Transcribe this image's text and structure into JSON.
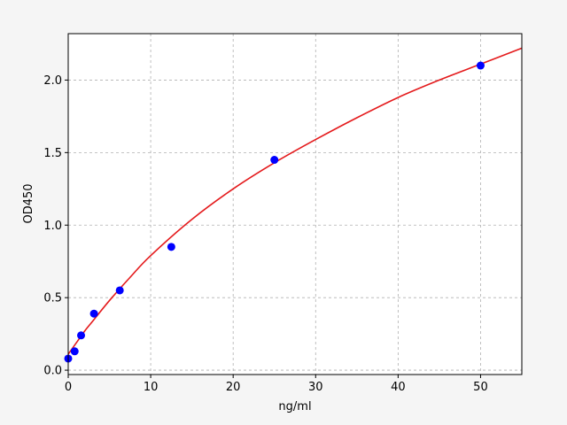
{
  "chart_data": {
    "type": "scatter",
    "title": "",
    "xlabel": "ng/ml",
    "ylabel": "OD450",
    "xlim": [
      0,
      55
    ],
    "ylim": [
      -0.03,
      2.32
    ],
    "xticks": [
      0,
      10,
      20,
      30,
      40,
      50
    ],
    "yticks": [
      0.0,
      0.5,
      1.0,
      1.5,
      2.0
    ],
    "xtick_labels": [
      "0",
      "10",
      "20",
      "30",
      "40",
      "50"
    ],
    "ytick_labels": [
      "0.0",
      "0.5",
      "1.0",
      "1.5",
      "2.0"
    ],
    "grid": true,
    "points": {
      "color": "#0000ff",
      "x": [
        0,
        0.78,
        1.56,
        3.125,
        6.25,
        12.5,
        25,
        50
      ],
      "y": [
        0.08,
        0.13,
        0.24,
        0.39,
        0.55,
        0.85,
        1.45,
        2.1
      ]
    },
    "fit_curve": {
      "color": "#e41a1c",
      "x": [
        0,
        1,
        2,
        3,
        5,
        7.5,
        10,
        15,
        20,
        25,
        30,
        35,
        40,
        45,
        50,
        55
      ],
      "y": [
        0.11,
        0.19,
        0.27,
        0.34,
        0.48,
        0.64,
        0.79,
        1.04,
        1.25,
        1.43,
        1.59,
        1.74,
        1.88,
        2.0,
        2.11,
        2.22
      ]
    }
  }
}
